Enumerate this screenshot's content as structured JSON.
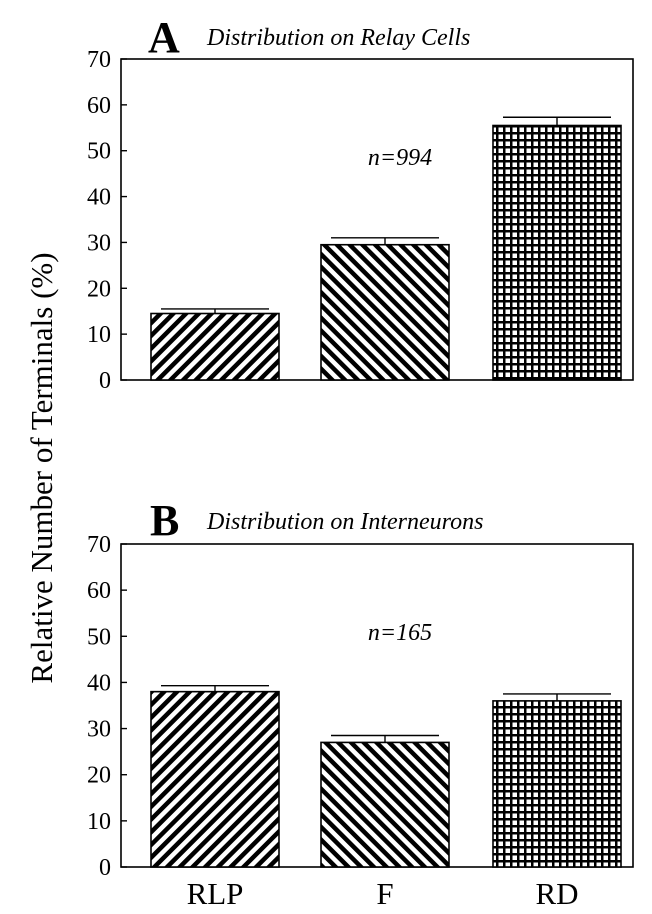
{
  "ylabel": "Relative Number of Terminals (%)",
  "colors": {
    "ink": "#000000",
    "background": "#ffffff"
  },
  "chart_data": [
    {
      "type": "bar",
      "panel_letter": "A",
      "title": "Distribution on Relay Cells",
      "annotation": "n=994",
      "categories": [
        "RLP",
        "F",
        "RD"
      ],
      "values": [
        14.5,
        29.5,
        55.5
      ],
      "errors": [
        1.0,
        1.5,
        1.8
      ],
      "patterns": [
        "diag-up",
        "diag-down",
        "grid"
      ],
      "ylim": [
        0,
        70
      ],
      "yticks": [
        "0",
        "10",
        "20",
        "30",
        "40",
        "50",
        "60",
        "70"
      ],
      "show_category_labels": false
    },
    {
      "type": "bar",
      "panel_letter": "B",
      "title": "Distribution on Interneurons",
      "annotation": "n=165",
      "categories": [
        "RLP",
        "F",
        "RD"
      ],
      "values": [
        38.0,
        27.0,
        36.0
      ],
      "errors": [
        1.3,
        1.5,
        1.5
      ],
      "patterns": [
        "diag-up",
        "diag-down",
        "grid"
      ],
      "ylim": [
        0,
        70
      ],
      "yticks": [
        "0",
        "10",
        "20",
        "30",
        "40",
        "50",
        "60",
        "70"
      ],
      "show_category_labels": true
    }
  ]
}
